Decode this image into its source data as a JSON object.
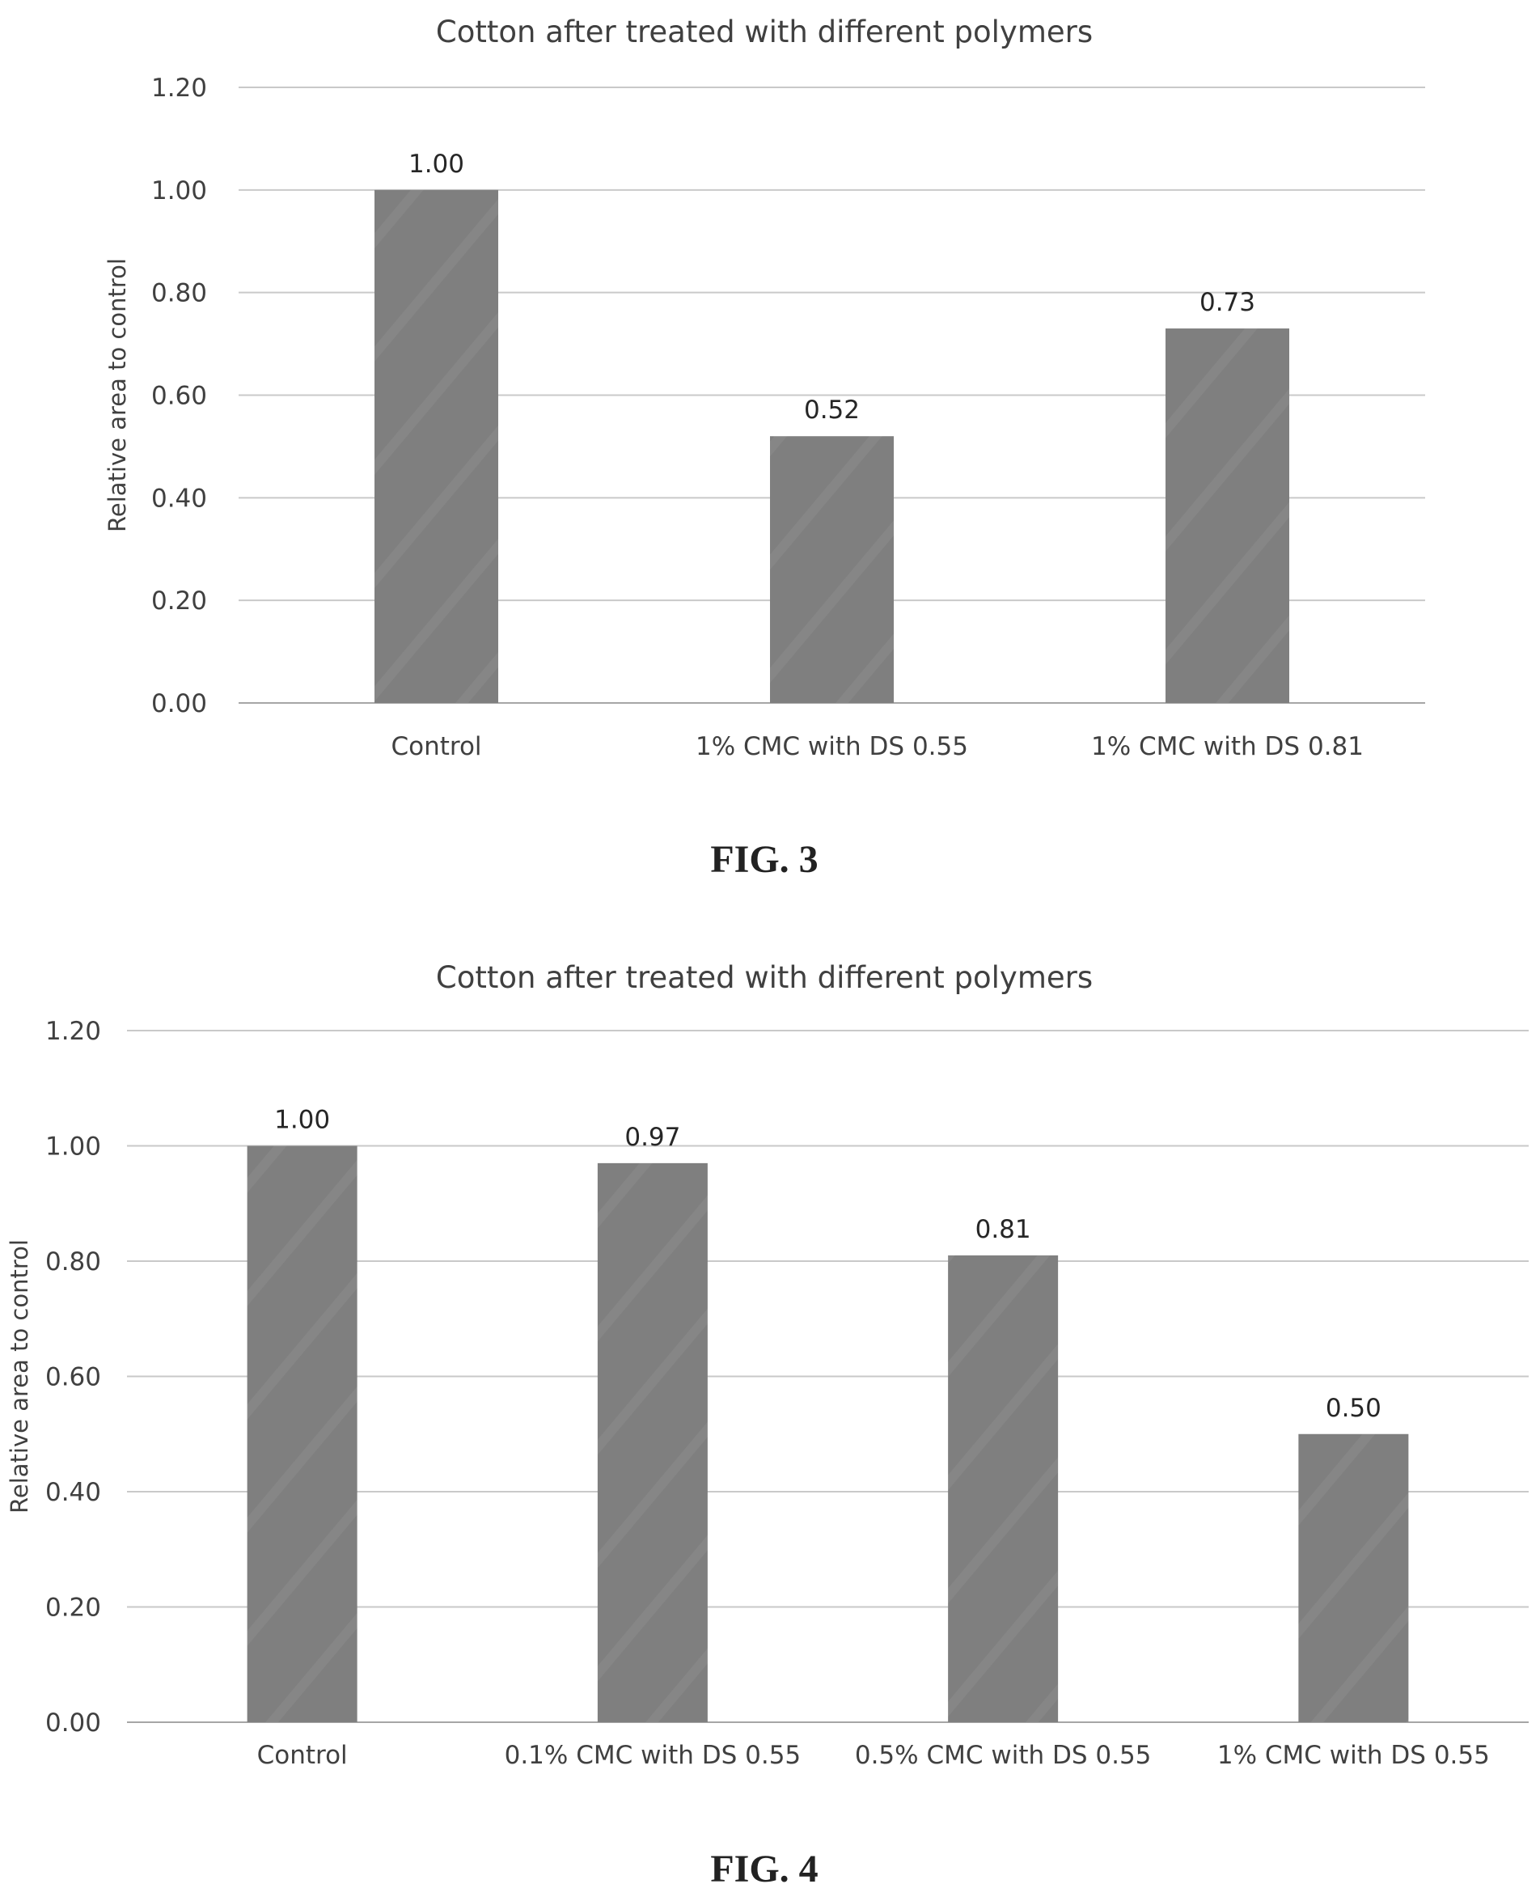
{
  "chart_data": [
    {
      "type": "bar",
      "title": "Cotton after treated with different polymers",
      "xlabel": "",
      "ylabel": "Relative area to control",
      "ylim": [
        0,
        1.2
      ],
      "yticks": [
        "0.00",
        "0.20",
        "0.40",
        "0.60",
        "0.80",
        "1.00",
        "1.20"
      ],
      "categories": [
        "Control",
        "1% CMC with DS 0.55",
        "1% CMC with DS 0.81"
      ],
      "values": [
        1.0,
        0.52,
        0.73
      ],
      "data_labels": [
        "1.00",
        "0.52",
        "0.73"
      ],
      "grid": true,
      "bar_color": "#7f7f7f",
      "caption": "FIG. 3"
    },
    {
      "type": "bar",
      "title": "Cotton after treated with different polymers",
      "xlabel": "",
      "ylabel": "Relative area to control",
      "ylim": [
        0,
        1.2
      ],
      "yticks": [
        "0.00",
        "0.20",
        "0.40",
        "0.60",
        "0.80",
        "1.00",
        "1.20"
      ],
      "categories": [
        "Control",
        "0.1% CMC with DS 0.55",
        "0.5% CMC with DS 0.55",
        "1% CMC with DS 0.55"
      ],
      "values": [
        1.0,
        0.97,
        0.81,
        0.5
      ],
      "data_labels": [
        "1.00",
        "0.97",
        "0.81",
        "0.50"
      ],
      "grid": true,
      "bar_color": "#7f7f7f",
      "caption": "FIG. 4"
    }
  ]
}
